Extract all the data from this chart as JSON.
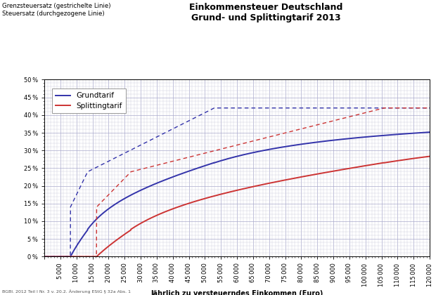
{
  "title_line1": "Einkommensteuer Deutschland",
  "title_line2": "Grund- und Splittingtarif 2013",
  "ylabel_text": "Grenzsteuersatz (gestrichelte Linie)\nSteuersatz (durchgezogene Linie)",
  "xlabel_text": "Jährlich zu versteuerndes Einkommen (Euro)",
  "footnote": "BGBl. 2012 Teil I Nr. 3 v. 20.2. Änderung EStG § 32a Abs. 1",
  "legend_grundtarif": "Grundtarif",
  "legend_splittingtarif": "Splittingtarif",
  "xmax": 120000,
  "ymax": 50,
  "blue_color": "#3333aa",
  "red_color": "#cc3333",
  "background_color": "#ffffff",
  "grid_major_color": "#aaaacc",
  "grid_minor_color": "#ccccdd",
  "title_fontsize": 9,
  "label_fontsize": 7,
  "tick_fontsize": 6,
  "legend_fontsize": 7.5
}
